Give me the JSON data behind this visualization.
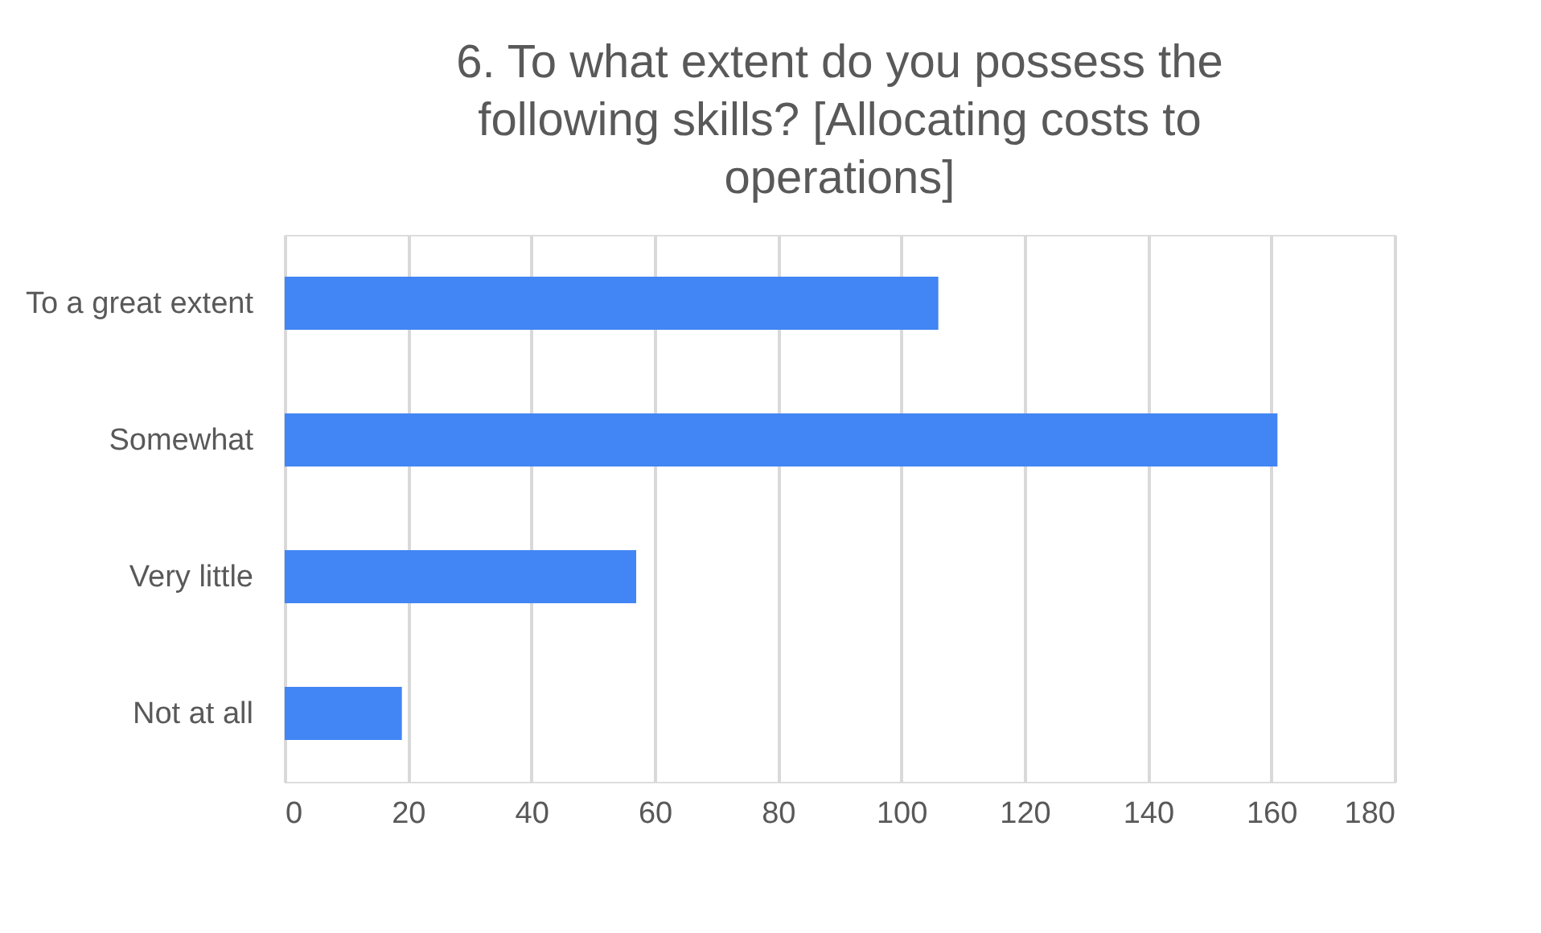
{
  "chart_data": {
    "type": "bar",
    "orientation": "horizontal",
    "title": "6. To what extent do you possess the following skills?  [Allocating costs to operations]",
    "categories": [
      "To a great extent",
      "Somewhat",
      "Very little",
      "Not at all"
    ],
    "values": [
      106,
      161,
      57,
      19
    ],
    "color": "#4285f4",
    "xlim": [
      0,
      180
    ],
    "xticks": [
      0,
      20,
      40,
      60,
      80,
      100,
      120,
      140,
      160,
      180
    ],
    "grid": "x"
  }
}
